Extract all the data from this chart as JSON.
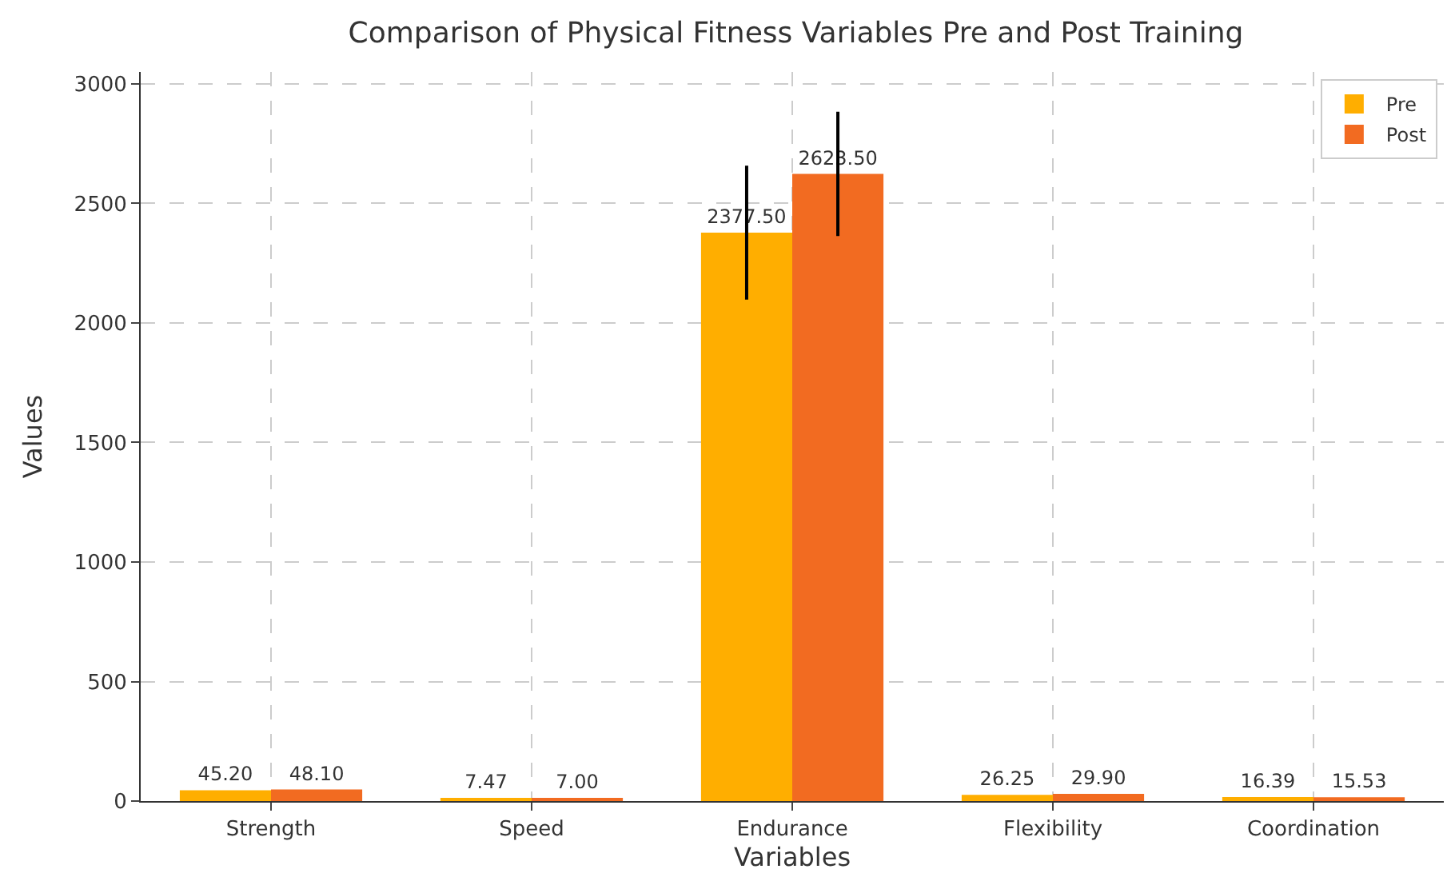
{
  "chart_data": {
    "type": "bar",
    "title": "Comparison of Physical Fitness Variables Pre and Post Training",
    "xlabel": "Variables",
    "ylabel": "Values",
    "categories": [
      "Strength",
      "Speed",
      "Endurance",
      "Flexibility",
      "Coordination"
    ],
    "series": [
      {
        "name": "Pre",
        "color": "#ffae00",
        "values": [
          45.2,
          7.47,
          2377.5,
          26.25,
          16.39
        ],
        "value_labels": [
          "45.20",
          "7.47",
          "2377.50",
          "26.25",
          "16.39"
        ],
        "errors": [
          null,
          null,
          280,
          null,
          null
        ]
      },
      {
        "name": "Post",
        "color": "#f26b21",
        "values": [
          48.1,
          7.0,
          2623.5,
          29.9,
          15.53
        ],
        "value_labels": [
          "48.10",
          "7.00",
          "2623.50",
          "29.90",
          "15.53"
        ],
        "errors": [
          null,
          null,
          260,
          null,
          null
        ]
      }
    ],
    "ylim": [
      0,
      3050
    ],
    "yticks": [
      0,
      500,
      1000,
      1500,
      2000,
      2500,
      3000
    ],
    "grid": true,
    "legend": "top right"
  }
}
